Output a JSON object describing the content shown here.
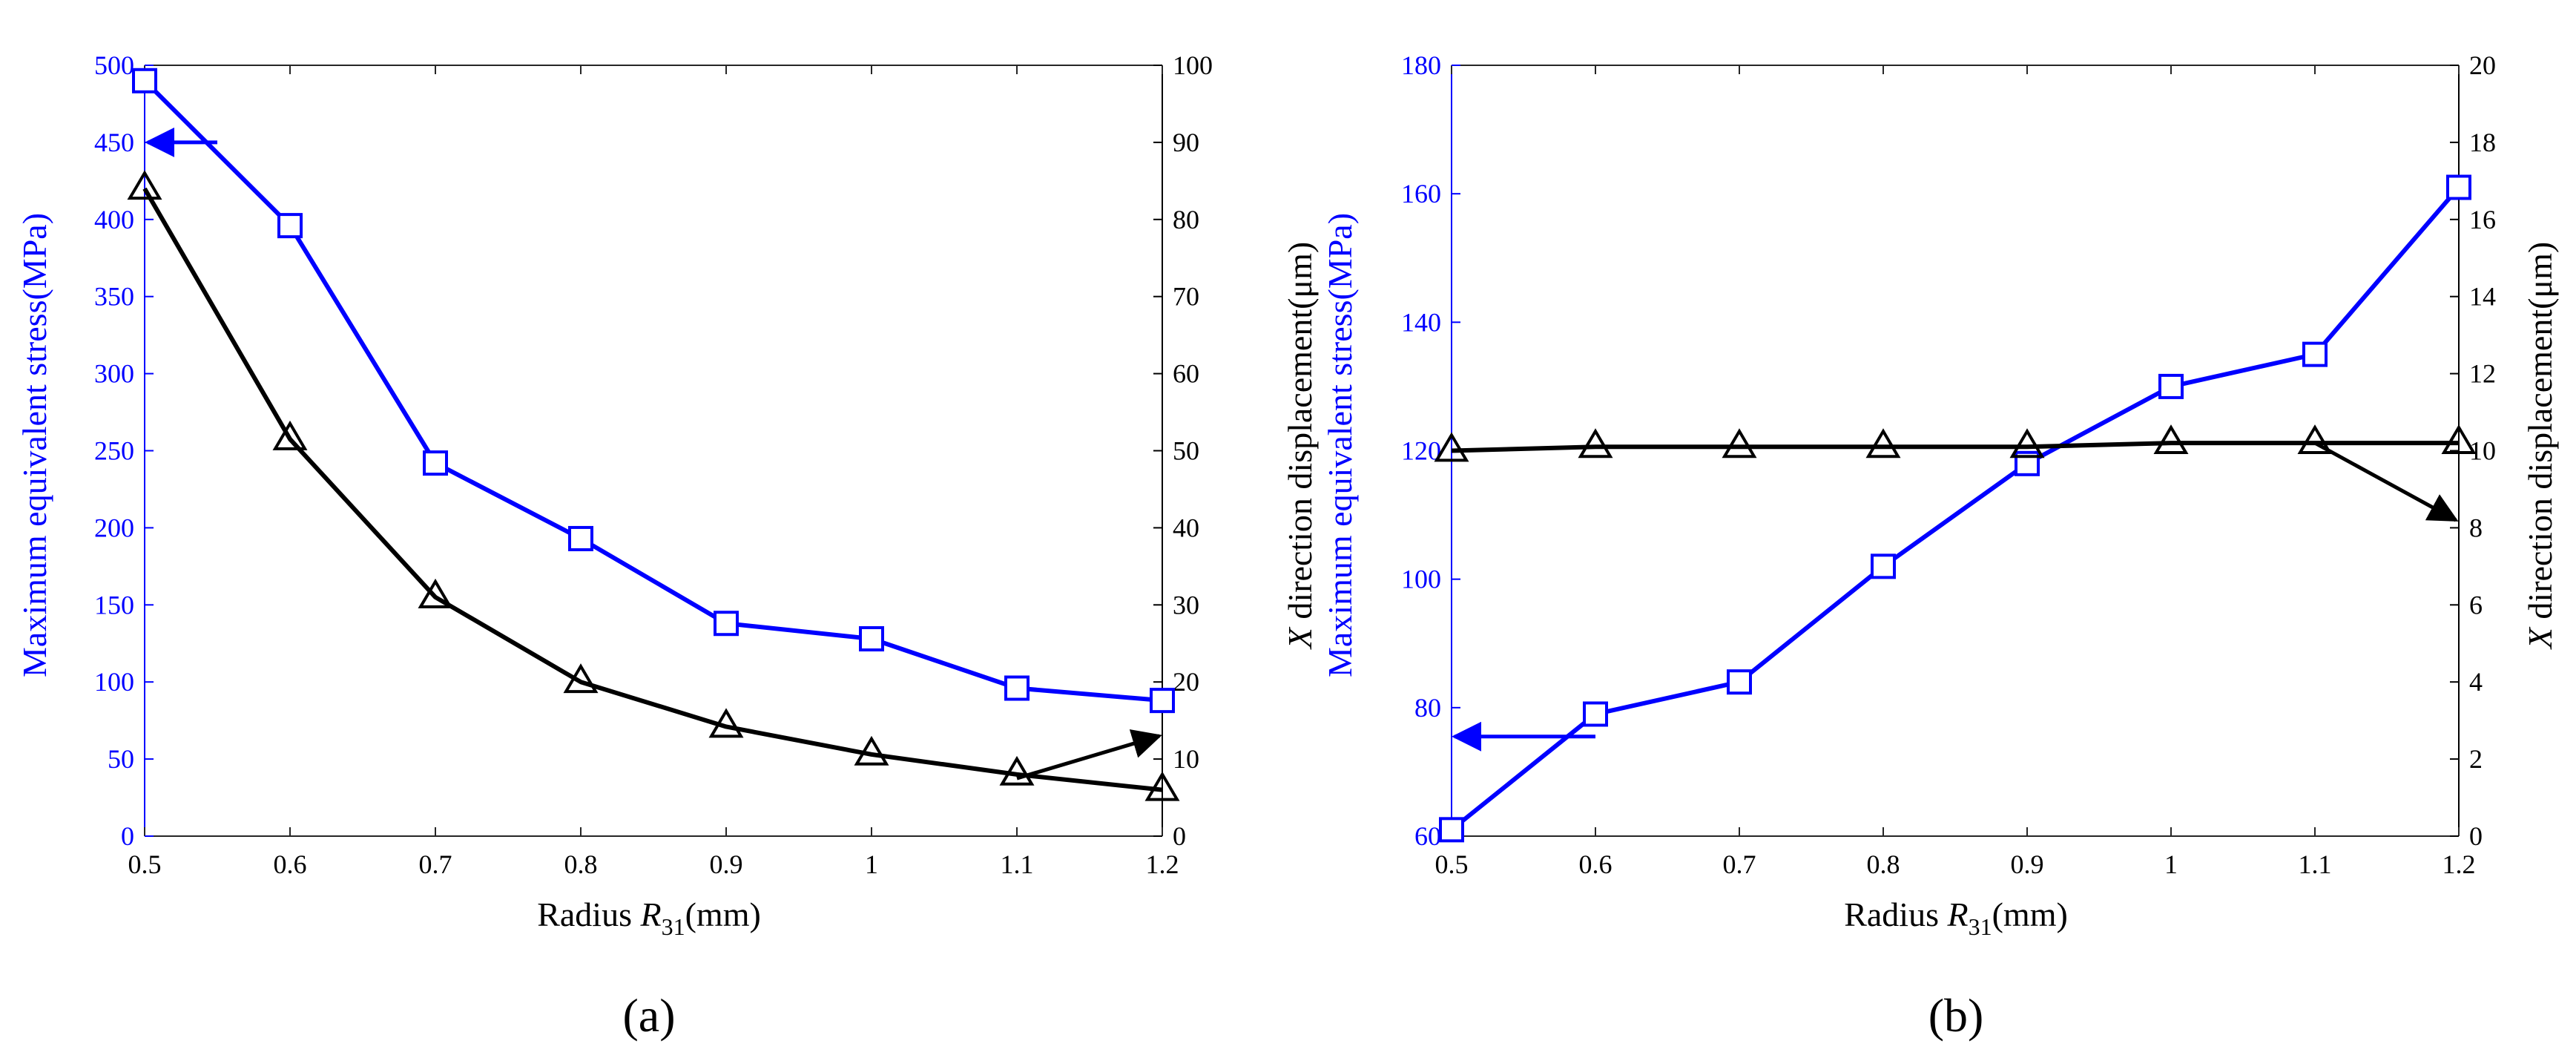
{
  "colors": {
    "stress": "#0000ff",
    "displacement": "#000000"
  },
  "chart_data": [
    {
      "type": "line",
      "caption": "(a)",
      "xlabel": {
        "prefix": "Radius ",
        "var": "R",
        "sub": "31",
        "suffix": "(mm)"
      },
      "ylabel_left": "Maximum equivalent stress(MPa)",
      "ylabel_right": {
        "var": "X",
        "text": " direction displacement(μm)"
      },
      "x": [
        0.5,
        0.6,
        0.7,
        0.8,
        0.9,
        1.0,
        1.1,
        1.2
      ],
      "xlim": [
        0.5,
        1.2
      ],
      "xticks": [
        "0.5",
        "0.6",
        "0.7",
        "0.8",
        "0.9",
        "1",
        "1.1",
        "1.2"
      ],
      "ylim_left": [
        0,
        500
      ],
      "yticks_left": [
        "0",
        "50",
        "100",
        "150",
        "200",
        "250",
        "300",
        "350",
        "400",
        "450",
        "500"
      ],
      "ylim_right": [
        0,
        100
      ],
      "yticks_right": [
        "0",
        "10",
        "20",
        "30",
        "40",
        "50",
        "60",
        "70",
        "80",
        "90",
        "100"
      ],
      "series": [
        {
          "name": "Maximum equivalent stress",
          "axis": "left",
          "marker": "square",
          "values": [
            490,
            396,
            242,
            193,
            138,
            128,
            96,
            88
          ]
        },
        {
          "name": "X direction displacement",
          "axis": "right",
          "marker": "triangle",
          "values": [
            84,
            51.5,
            31,
            20,
            14.2,
            10.6,
            8,
            6
          ]
        }
      ],
      "annotations": [
        {
          "series": "stress",
          "direction": "points to left axis",
          "from": [
            0.55,
            450
          ],
          "to": [
            0.5,
            450
          ]
        },
        {
          "series": "displacement",
          "direction": "points to right axis",
          "from": [
            1.1,
            7.5
          ],
          "to": [
            1.2,
            13
          ]
        }
      ]
    },
    {
      "type": "line",
      "caption": "(b)",
      "xlabel": {
        "prefix": "Radius ",
        "var": "R",
        "sub": "31",
        "suffix": "(mm)"
      },
      "ylabel_left": "Maximum equivalent stress(MPa)",
      "ylabel_right": {
        "var": "X",
        "text": " direction displacement(μm)"
      },
      "x": [
        0.5,
        0.6,
        0.7,
        0.8,
        0.9,
        1.0,
        1.1,
        1.2
      ],
      "xlim": [
        0.5,
        1.2
      ],
      "xticks": [
        "0.5",
        "0.6",
        "0.7",
        "0.8",
        "0.9",
        "1",
        "1.1",
        "1.2"
      ],
      "ylim_left": [
        60,
        180
      ],
      "yticks_left": [
        "60",
        "80",
        "100",
        "120",
        "140",
        "160",
        "180"
      ],
      "ylim_right": [
        0,
        20
      ],
      "yticks_right": [
        "0",
        "2",
        "4",
        "6",
        "8",
        "10",
        "12",
        "14",
        "16",
        "18",
        "20"
      ],
      "series": [
        {
          "name": "Maximum equivalent stress",
          "axis": "left",
          "marker": "square",
          "values": [
            61,
            79,
            84,
            102,
            118,
            130,
            135,
            161
          ]
        },
        {
          "name": "X direction displacement",
          "axis": "right",
          "marker": "triangle",
          "values": [
            10.0,
            10.1,
            10.1,
            10.1,
            10.1,
            10.2,
            10.2,
            10.2
          ]
        }
      ],
      "annotations": [
        {
          "series": "stress",
          "direction": "points to left axis",
          "from": [
            0.6,
            75.5
          ],
          "to": [
            0.5,
            75.5
          ]
        },
        {
          "series": "displacement",
          "direction": "points to right axis",
          "from": [
            1.1,
            10.2
          ],
          "to": [
            1.2,
            8.2
          ]
        }
      ]
    }
  ]
}
